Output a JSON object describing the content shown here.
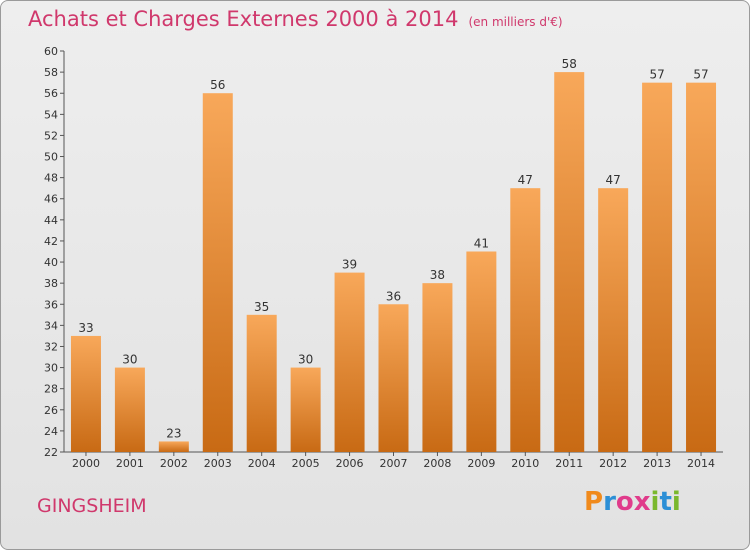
{
  "header": {
    "title": "Achats et Charges Externes 2000 à 2014",
    "subtitle": "(en milliers d'€)"
  },
  "footer": {
    "city": "GINGSHEIM",
    "logo_text": "Proxiti",
    "logo_colors": [
      "#f08a1c",
      "#2c8fd6",
      "#e03b8b",
      "#e03b8b",
      "#7ab82d",
      "#2c8fd6",
      "#7ab82d"
    ]
  },
  "colors": {
    "title": "#d0386c",
    "bar_light": "#f8a85a",
    "bar_dark": "#c86a14",
    "axis": "#555555",
    "gridline": "#c8c8c8"
  },
  "chart_data": {
    "type": "bar",
    "title": "Achats et Charges Externes 2000 à 2014",
    "subtitle": "(en milliers d'€)",
    "xlabel": "",
    "ylabel": "",
    "categories": [
      "2000",
      "2001",
      "2002",
      "2003",
      "2004",
      "2005",
      "2006",
      "2007",
      "2008",
      "2009",
      "2010",
      "2011",
      "2012",
      "2013",
      "2014"
    ],
    "values": [
      33,
      30,
      23,
      56,
      35,
      30,
      39,
      36,
      38,
      41,
      47,
      58,
      47,
      57,
      57
    ],
    "ylim": [
      22,
      60
    ],
    "yticks": [
      22,
      24,
      26,
      28,
      30,
      32,
      34,
      36,
      38,
      40,
      42,
      44,
      46,
      48,
      50,
      52,
      54,
      56,
      58,
      60
    ],
    "data_labels": true,
    "grid": false,
    "legend": "none"
  }
}
